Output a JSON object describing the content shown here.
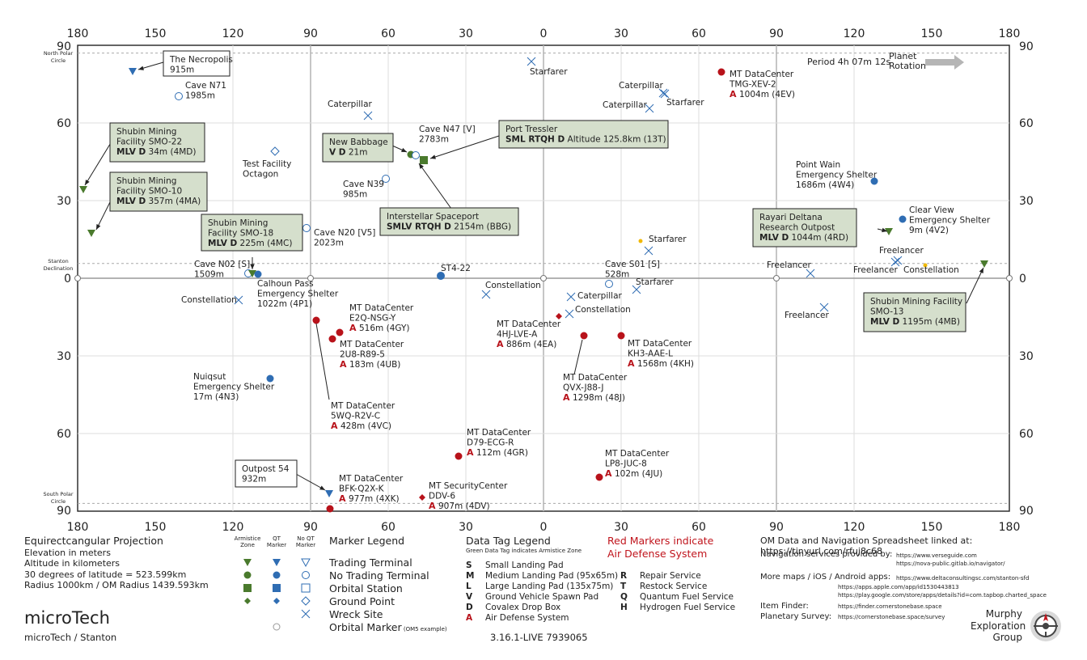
{
  "map": {
    "top_lon_ticks": [
      "180",
      "150",
      "120",
      "90",
      "60",
      "30",
      "0",
      "30",
      "60",
      "90",
      "120",
      "150",
      "180"
    ],
    "bottom_lon_ticks": [
      "180",
      "150",
      "120",
      "90",
      "60",
      "30",
      "0",
      "30",
      "60",
      "90",
      "120",
      "150",
      "180"
    ],
    "left_lat_ticks": [
      "90",
      "60",
      "30",
      "0",
      "30",
      "60",
      "90"
    ],
    "right_lat_ticks": [
      "90",
      "60",
      "30",
      "0",
      "30",
      "60",
      "90"
    ],
    "north_circle_label": [
      "North Polar",
      "Circle"
    ],
    "south_circle_label": [
      "South Polar",
      "Circle"
    ],
    "declination_label": [
      "Stanton",
      "Declination"
    ],
    "rotation_period": "Period 4h 07m 12s",
    "rotation_label": [
      "Planet",
      "Rotation"
    ],
    "colors": {
      "green": "#4a7a2d",
      "blue": "#2f6db3",
      "red": "#b8121a",
      "yellow": "#f0b800",
      "callout_bg": "#d5dfcc",
      "grid": "#c4c4c4"
    }
  },
  "labels": [
    {
      "id": "cave-n71",
      "lines": [
        "Cave N71",
        "1985m"
      ]
    },
    {
      "id": "caterpillar-1",
      "lines": [
        "Caterpillar"
      ]
    },
    {
      "id": "starfarer-1",
      "lines": [
        "Starfarer"
      ]
    },
    {
      "id": "mt-dc-tmg",
      "lines": [
        "MT DataCenter",
        "TMG-XEV-2"
      ],
      "defense": "1004m (4EV)"
    },
    {
      "id": "caterpillar-2",
      "lines": [
        "Caterpillar"
      ]
    },
    {
      "id": "starfarer-2",
      "lines": [
        "Starfarer"
      ]
    },
    {
      "id": "caterpillar-3",
      "lines": [
        "Caterpillar"
      ]
    },
    {
      "id": "test-facility",
      "lines": [
        "Test Facility",
        "Octagon"
      ]
    },
    {
      "id": "cave-n47",
      "lines": [
        "Cave N47 [V]",
        "2783m"
      ]
    },
    {
      "id": "cave-n39",
      "lines": [
        "Cave N39",
        "985m"
      ]
    },
    {
      "id": "point-wain",
      "lines": [
        "Point Wain",
        "Emergency Shelter",
        "1686m (4W4)"
      ]
    },
    {
      "id": "clear-view",
      "lines": [
        "Clear View",
        "Emergency Shelter",
        "9m (4V2)"
      ]
    },
    {
      "id": "cave-n20",
      "lines": [
        "Cave N20 [V5]",
        "2023m"
      ]
    },
    {
      "id": "starfarer-3",
      "lines": [
        "Starfarer"
      ]
    },
    {
      "id": "freelancer-1",
      "lines": [
        "Freelancer"
      ]
    },
    {
      "id": "cave-n02",
      "lines": [
        "Cave N02 [S]",
        "1509m"
      ]
    },
    {
      "id": "st4-22",
      "lines": [
        "ST4-22"
      ]
    },
    {
      "id": "cave-s01",
      "lines": [
        "Cave S01 [S]",
        "528m"
      ]
    },
    {
      "id": "freelancer-2",
      "lines": [
        "Freelancer"
      ]
    },
    {
      "id": "freelancer-3",
      "lines": [
        "Freelancer"
      ]
    },
    {
      "id": "constellation-1",
      "lines": [
        "Constellation"
      ]
    },
    {
      "id": "calhoun",
      "lines": [
        "Calhoun Pass",
        "Emergency Shelter",
        "1022m (4P1)"
      ]
    },
    {
      "id": "constellation-2",
      "lines": [
        "Constellation"
      ]
    },
    {
      "id": "starfarer-4",
      "lines": [
        "Starfarer"
      ]
    },
    {
      "id": "caterpillar-4",
      "lines": [
        "Caterpillar"
      ]
    },
    {
      "id": "constellation-3",
      "lines": [
        "Constellation"
      ]
    },
    {
      "id": "constellation-4",
      "lines": [
        "Constellation"
      ]
    },
    {
      "id": "freelancer-4",
      "lines": [
        "Freelancer"
      ]
    },
    {
      "id": "mt-dc-e2q",
      "lines": [
        "MT DataCenter",
        "E2Q-NSG-Y"
      ],
      "defense": "516m (4GY)"
    },
    {
      "id": "mt-dc-2u8",
      "lines": [
        "MT DataCenter",
        "2U8-R89-5"
      ],
      "defense": "183m (4UB)"
    },
    {
      "id": "mt-dc-4hj",
      "lines": [
        "MT DataCenter",
        "4HJ-LVE-A"
      ],
      "defense": "886m (4EA)"
    },
    {
      "id": "mt-dc-kh3",
      "lines": [
        "MT DataCenter",
        "KH3-AAE-L"
      ],
      "defense": "1568m (4KH)"
    },
    {
      "id": "mt-dc-qvx",
      "lines": [
        "MT DataCenter",
        "QVX-J88-J"
      ],
      "defense": "1298m (48J)"
    },
    {
      "id": "nuiqsut",
      "lines": [
        "Nuiqsut",
        "Emergency Shelter",
        "17m (4N3)"
      ]
    },
    {
      "id": "mt-dc-5wq",
      "lines": [
        "MT DataCenter",
        "5WQ-R2V-C"
      ],
      "defense": "428m (4VC)"
    },
    {
      "id": "mt-dc-d79",
      "lines": [
        "MT DataCenter",
        "D79-ECG-R"
      ],
      "defense": "112m (4GR)"
    },
    {
      "id": "mt-dc-lp8",
      "lines": [
        "MT DataCenter",
        "LP8-JUC-8"
      ],
      "defense": "102m (4JU)"
    },
    {
      "id": "mt-dc-bfk",
      "lines": [
        "MT DataCenter",
        "BFK-Q2X-K"
      ],
      "defense": "977m (4XK)"
    },
    {
      "id": "mt-sc-ddv",
      "lines": [
        "MT SecurityCenter",
        "DDV-6"
      ],
      "defense": "907m (4DV)"
    }
  ],
  "callouts": [
    {
      "id": "necropolis",
      "lines": [
        "The Necropolis",
        "915m"
      ],
      "green": false
    },
    {
      "id": "smo22",
      "lines": [
        "Shubin Mining",
        "Facility SMO-22"
      ],
      "code": "MLV D",
      "rest": " 34m (4MD)",
      "green": true
    },
    {
      "id": "smo10",
      "lines": [
        "Shubin Mining",
        "Facility SMO-10"
      ],
      "code": "MLV D",
      "rest": " 357m (4MA)",
      "green": true
    },
    {
      "id": "new-babbage",
      "lines": [
        "New Babbage"
      ],
      "code": "V D",
      "rest": " 21m",
      "green": true
    },
    {
      "id": "port-tressler",
      "lines": [
        "Port Tressler"
      ],
      "code": "SML RTQH D",
      "rest": " Altitude 125.8km (13T)",
      "green": true
    },
    {
      "id": "interstellar",
      "lines": [
        "Interstellar Spaceport"
      ],
      "code": "SMLV RTQH D",
      "rest": " 2154m (BBG)",
      "green": true
    },
    {
      "id": "smo18",
      "lines": [
        "Shubin Mining",
        "Facility SMO-18"
      ],
      "code": "MLV D",
      "rest": " 225m (4MC)",
      "green": true
    },
    {
      "id": "rayari",
      "lines": [
        "Rayari Deltana",
        "Research Outpost"
      ],
      "code": "MLV D",
      "rest": " 1044m (4RD)",
      "green": true
    },
    {
      "id": "smo13",
      "lines": [
        "Shubin Mining Facility",
        "SMO-13"
      ],
      "code": "MLV D",
      "rest": " 1195m (4MB)",
      "green": true
    },
    {
      "id": "outpost54",
      "lines": [
        "Outpost 54",
        "932m"
      ],
      "green": false
    }
  ],
  "footer": {
    "projection": "Equirectcangular  Projection",
    "projection_lines": [
      "Elevation in meters",
      "Altitude in kilometers",
      "30 degrees of latitude = 523.599km",
      "Radius 1000km / OM Radius 1439.593km"
    ],
    "title": "microTech",
    "subtitle": "microTech / Stanton",
    "col_heads": [
      [
        "Armistice",
        "Zone"
      ],
      [
        "QT",
        "Marker"
      ],
      [
        "No QT",
        "Marker"
      ]
    ],
    "marker_legend_title": "Marker Legend",
    "marker_legend": [
      "Trading Terminal",
      "No Trading Terminal",
      "Orbital Station",
      "Ground Point",
      "Wreck Site",
      "Orbital Marker"
    ],
    "orbital_example": "(OM5 example)",
    "data_tag_title": "Data Tag Legend",
    "data_tag_sub": "Green Data Tag indicates Armistice Zone",
    "tags_left": [
      [
        "S",
        "Small Landing Pad"
      ],
      [
        "M",
        "Medium Landing Pad (95x65m)"
      ],
      [
        "L",
        "Large Landing Pad (135x75m)"
      ],
      [
        "V",
        "Ground Vehicle Spawn Pad"
      ],
      [
        "D",
        "Covalex Drop Box"
      ],
      [
        "A",
        "Air Defense System"
      ]
    ],
    "tags_right": [
      [
        "R",
        "Repair Service"
      ],
      [
        "T",
        "Restock Service"
      ],
      [
        "Q",
        "Quantum Fuel Service"
      ],
      [
        "H",
        "Hydrogen Fuel Service"
      ]
    ],
    "red_note": [
      "Red Markers indicate",
      "Air Defense System"
    ],
    "version": "3.16.1-LIVE 7939065",
    "om_link": "OM Data and Navigation Spreadsheet linked at: https://tinyurl.com/rfuj8c68",
    "nav_label": "Navigation services provided by:",
    "nav_urls": [
      "https://www.verseguide.com",
      "https://nova-public.gitlab.io/navigator/"
    ],
    "more_label": "More maps / iOS / Android apps:",
    "more_urls": [
      "https://www.deltaconsultingsc.com/stanton-sfd",
      "https://apps.apple.com/app/id1530443813",
      "https://play.google.com/store/apps/details?id=com.tapbop.charted_space"
    ],
    "item_label": "Item Finder:",
    "item_url": "https://finder.cornerstonebase.space",
    "survey_label": "Planetary Survey:",
    "survey_url": "https://cornerstonebase.space/survey",
    "group": [
      "Murphy",
      "Exploration",
      "Group"
    ]
  }
}
